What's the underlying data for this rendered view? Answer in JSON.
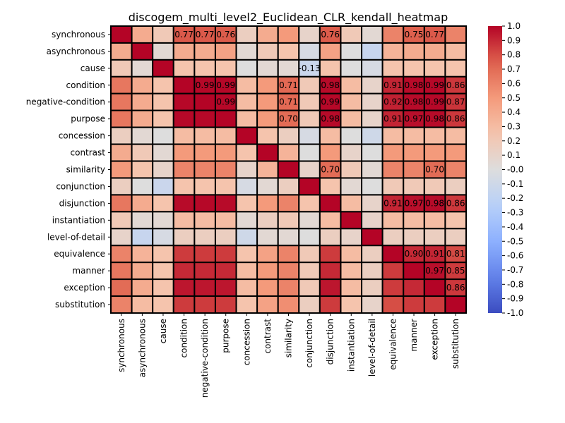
{
  "chart_data": {
    "type": "heatmap",
    "title": "discogem_multi_level2_Euclidean_CLR_kendall_heatmap",
    "xlabel": "",
    "ylabel": "",
    "labels": [
      "synchronous",
      "asynchronous",
      "cause",
      "condition",
      "negative-condition",
      "purpose",
      "concession",
      "contrast",
      "similarity",
      "conjunction",
      "disjunction",
      "instantiation",
      "level-of-detail",
      "equivalence",
      "manner",
      "exception",
      "substitution"
    ],
    "matrix": [
      [
        1.0,
        0.4,
        0.2,
        0.77,
        0.77,
        0.76,
        0.15,
        0.4,
        0.5,
        0.1,
        0.76,
        0.2,
        0.05,
        0.6,
        0.75,
        0.77,
        0.6
      ],
      [
        0.4,
        1.0,
        0.05,
        0.4,
        0.4,
        0.45,
        0.05,
        0.2,
        0.25,
        -0.05,
        0.45,
        0.0,
        -0.15,
        0.35,
        0.4,
        0.4,
        0.3
      ],
      [
        0.2,
        0.05,
        1.0,
        0.25,
        0.25,
        0.25,
        0.0,
        0.05,
        0.05,
        -0.13,
        0.25,
        0.0,
        -0.05,
        0.25,
        0.25,
        0.25,
        0.25
      ],
      [
        0.65,
        0.4,
        0.25,
        1.0,
        0.99,
        0.99,
        0.3,
        0.5,
        0.71,
        0.2,
        0.98,
        0.3,
        0.1,
        0.91,
        0.98,
        0.99,
        0.86
      ],
      [
        0.65,
        0.4,
        0.25,
        0.99,
        1.0,
        0.99,
        0.3,
        0.5,
        0.71,
        0.2,
        0.99,
        0.3,
        0.1,
        0.92,
        0.98,
        0.99,
        0.87
      ],
      [
        0.65,
        0.4,
        0.25,
        0.99,
        0.99,
        1.0,
        0.3,
        0.5,
        0.7,
        0.2,
        0.98,
        0.3,
        0.1,
        0.91,
        0.97,
        0.98,
        0.86
      ],
      [
        0.15,
        0.05,
        0.0,
        0.3,
        0.3,
        0.3,
        1.0,
        0.25,
        0.15,
        -0.05,
        0.3,
        0.0,
        -0.1,
        0.3,
        0.3,
        0.3,
        0.3
      ],
      [
        0.4,
        0.2,
        0.05,
        0.5,
        0.5,
        0.5,
        0.25,
        1.0,
        0.35,
        0.0,
        0.5,
        0.1,
        0.0,
        0.5,
        0.5,
        0.5,
        0.5
      ],
      [
        0.5,
        0.25,
        0.1,
        0.6,
        0.6,
        0.6,
        0.1,
        0.35,
        1.0,
        0.1,
        0.7,
        0.2,
        0.05,
        0.6,
        0.6,
        0.7,
        0.6
      ],
      [
        0.15,
        0.0,
        -0.13,
        0.25,
        0.25,
        0.25,
        -0.05,
        0.05,
        0.15,
        1.0,
        0.25,
        0.05,
        0.0,
        0.2,
        0.2,
        0.2,
        0.15
      ],
      [
        0.65,
        0.4,
        0.25,
        0.98,
        0.99,
        0.98,
        0.25,
        0.5,
        0.6,
        0.25,
        1.0,
        0.3,
        0.1,
        0.91,
        0.97,
        0.98,
        0.86
      ],
      [
        0.2,
        0.05,
        0.05,
        0.3,
        0.3,
        0.3,
        0.05,
        0.15,
        0.2,
        0.05,
        0.3,
        1.0,
        0.1,
        0.3,
        0.3,
        0.3,
        0.25
      ],
      [
        0.1,
        -0.15,
        -0.05,
        0.15,
        0.15,
        0.15,
        -0.1,
        0.05,
        0.05,
        0.0,
        0.15,
        0.1,
        1.0,
        0.15,
        0.15,
        0.15,
        0.15
      ],
      [
        0.6,
        0.35,
        0.25,
        0.85,
        0.85,
        0.85,
        0.25,
        0.45,
        0.6,
        0.2,
        0.85,
        0.3,
        0.15,
        1.0,
        0.9,
        0.91,
        0.81
      ],
      [
        0.65,
        0.4,
        0.25,
        0.9,
        0.9,
        0.9,
        0.3,
        0.5,
        0.6,
        0.2,
        0.9,
        0.3,
        0.15,
        0.85,
        1.0,
        0.97,
        0.85
      ],
      [
        0.7,
        0.4,
        0.25,
        0.95,
        0.95,
        0.95,
        0.3,
        0.5,
        0.6,
        0.2,
        0.95,
        0.3,
        0.15,
        0.85,
        0.9,
        1.0,
        0.86
      ],
      [
        0.6,
        0.3,
        0.25,
        0.85,
        0.85,
        0.85,
        0.25,
        0.45,
        0.55,
        0.15,
        0.85,
        0.25,
        0.1,
        0.8,
        0.85,
        0.85,
        1.0
      ]
    ],
    "annotations": [
      {
        "row": 0,
        "col": 3,
        "text": "0.77"
      },
      {
        "row": 0,
        "col": 4,
        "text": "0.77"
      },
      {
        "row": 0,
        "col": 5,
        "text": "0.76"
      },
      {
        "row": 0,
        "col": 10,
        "text": "0.76"
      },
      {
        "row": 0,
        "col": 14,
        "text": "0.75"
      },
      {
        "row": 0,
        "col": 15,
        "text": "0.77"
      },
      {
        "row": 2,
        "col": 9,
        "text": "-0.13"
      },
      {
        "row": 3,
        "col": 4,
        "text": "0.99"
      },
      {
        "row": 3,
        "col": 5,
        "text": "0.99"
      },
      {
        "row": 3,
        "col": 8,
        "text": "0.71"
      },
      {
        "row": 3,
        "col": 10,
        "text": "0.98"
      },
      {
        "row": 3,
        "col": 13,
        "text": "0.91"
      },
      {
        "row": 3,
        "col": 14,
        "text": "0.98"
      },
      {
        "row": 3,
        "col": 15,
        "text": "0.99"
      },
      {
        "row": 3,
        "col": 16,
        "text": "0.86"
      },
      {
        "row": 4,
        "col": 5,
        "text": "0.99"
      },
      {
        "row": 4,
        "col": 8,
        "text": "0.71"
      },
      {
        "row": 4,
        "col": 10,
        "text": "0.99"
      },
      {
        "row": 4,
        "col": 13,
        "text": "0.92"
      },
      {
        "row": 4,
        "col": 14,
        "text": "0.98"
      },
      {
        "row": 4,
        "col": 15,
        "text": "0.99"
      },
      {
        "row": 4,
        "col": 16,
        "text": "0.87"
      },
      {
        "row": 5,
        "col": 8,
        "text": "0.70"
      },
      {
        "row": 5,
        "col": 10,
        "text": "0.98"
      },
      {
        "row": 5,
        "col": 13,
        "text": "0.91"
      },
      {
        "row": 5,
        "col": 14,
        "text": "0.97"
      },
      {
        "row": 5,
        "col": 15,
        "text": "0.98"
      },
      {
        "row": 5,
        "col": 16,
        "text": "0.86"
      },
      {
        "row": 8,
        "col": 10,
        "text": "0.70"
      },
      {
        "row": 8,
        "col": 15,
        "text": "0.70"
      },
      {
        "row": 10,
        "col": 13,
        "text": "0.91"
      },
      {
        "row": 10,
        "col": 14,
        "text": "0.97"
      },
      {
        "row": 10,
        "col": 15,
        "text": "0.98"
      },
      {
        "row": 10,
        "col": 16,
        "text": "0.86"
      },
      {
        "row": 13,
        "col": 14,
        "text": "0.90"
      },
      {
        "row": 13,
        "col": 15,
        "text": "0.91"
      },
      {
        "row": 13,
        "col": 16,
        "text": "0.81"
      },
      {
        "row": 14,
        "col": 15,
        "text": "0.97"
      },
      {
        "row": 14,
        "col": 16,
        "text": "0.85"
      },
      {
        "row": 15,
        "col": 16,
        "text": "0.86"
      }
    ],
    "vmin": -1.0,
    "vmax": 1.0,
    "colormap": "coolwarm",
    "colorbar_ticks": [
      "1.0",
      "0.9",
      "0.8",
      "0.7",
      "0.6",
      "0.5",
      "0.4",
      "0.3",
      "0.2",
      "0.1",
      "-0.0",
      "-0.1",
      "-0.2",
      "-0.3",
      "-0.4",
      "-0.5",
      "-0.6",
      "-0.7",
      "-0.8",
      "-0.9",
      "-1.0"
    ],
    "colorbar_tick_values": [
      1.0,
      0.9,
      0.8,
      0.7,
      0.6,
      0.5,
      0.4,
      0.3,
      0.2,
      0.1,
      0.0,
      -0.1,
      -0.2,
      -0.3,
      -0.4,
      -0.5,
      -0.6,
      -0.7,
      -0.8,
      -0.9,
      -1.0
    ],
    "colors": {
      "low": "#3b4cc0",
      "mid": "#dddddd",
      "high": "#b40426",
      "cell_border": "#000000"
    }
  }
}
